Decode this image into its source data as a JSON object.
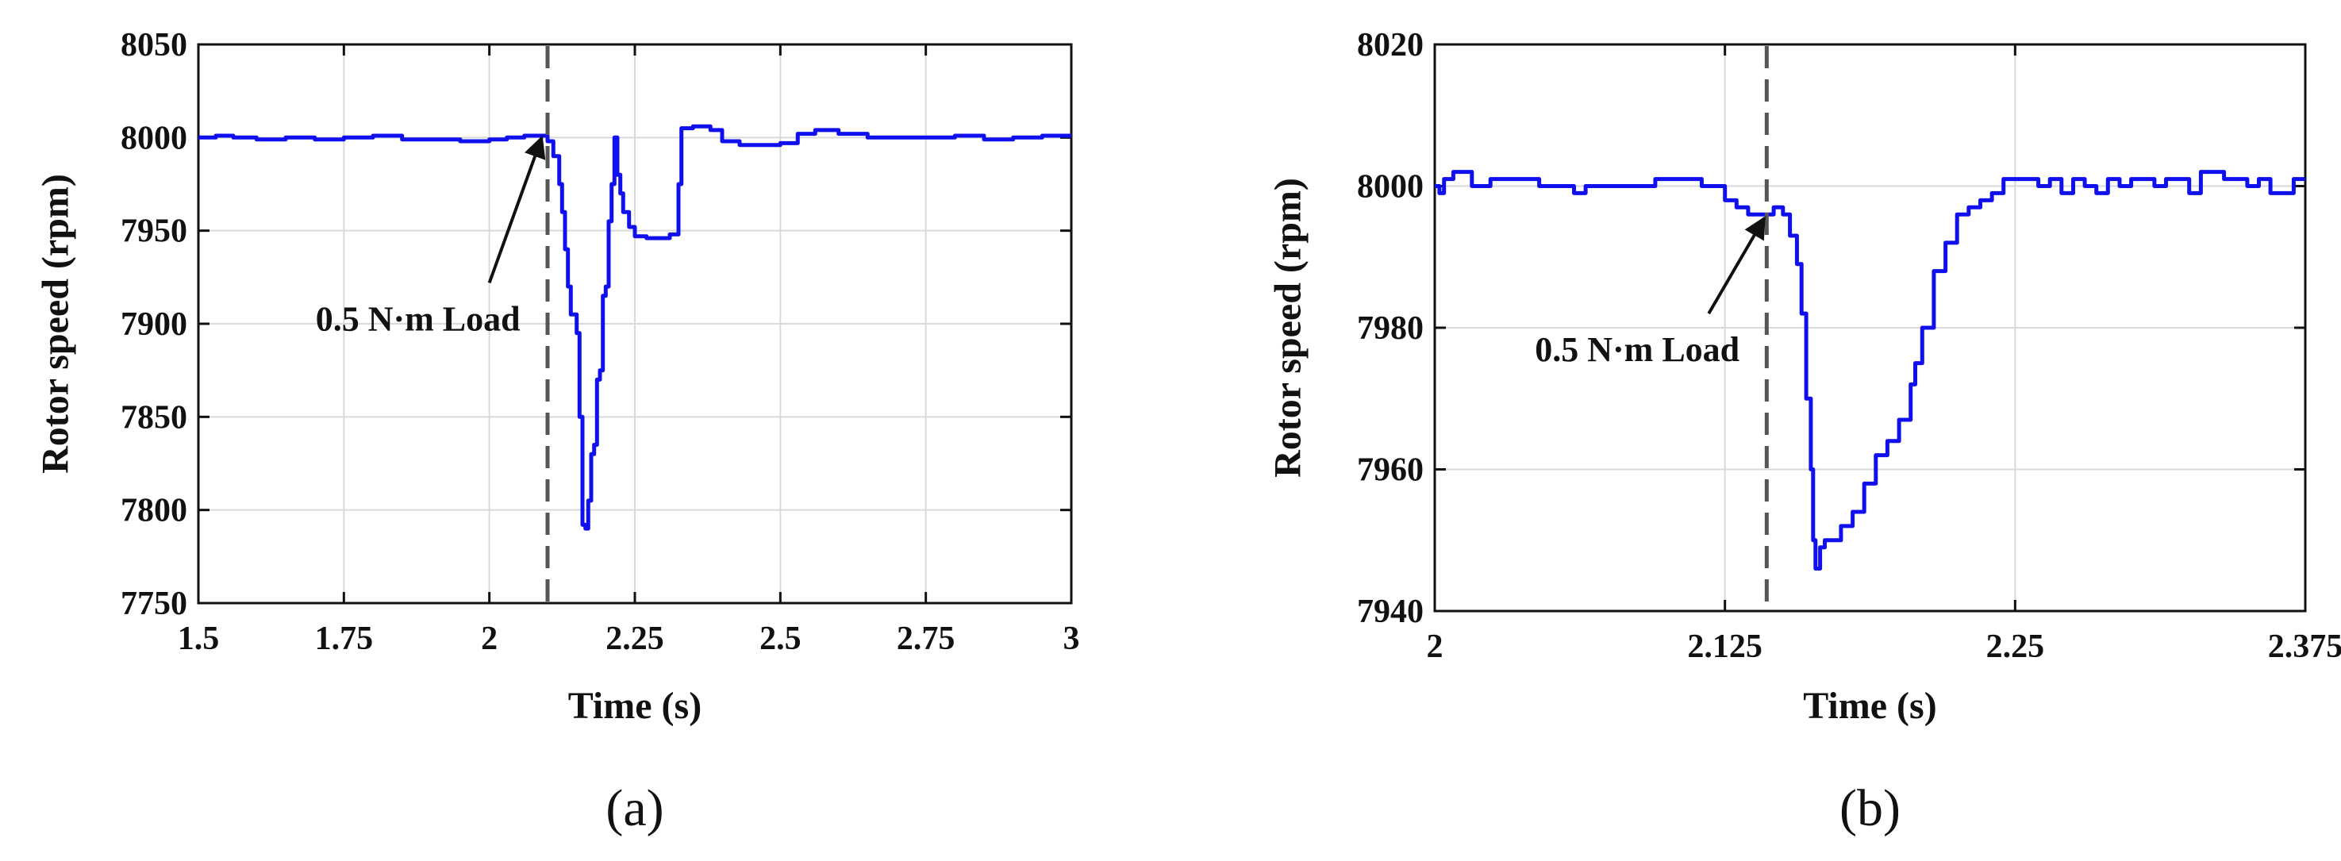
{
  "colors": {
    "series": "#1010ee",
    "grid": "#d9d9d9",
    "dashed_line": "#555555"
  },
  "chart_data": [
    {
      "type": "line",
      "panel_label": "(a)",
      "xlabel": "Time (s)",
      "ylabel": "Rotor speed (rpm)",
      "xlim": [
        1.5,
        3
      ],
      "ylim": [
        7750,
        8050
      ],
      "x_ticks": [
        1.5,
        1.75,
        2,
        2.25,
        2.5,
        2.75,
        3
      ],
      "x_tick_labels": [
        "1.5",
        "1.75",
        "2",
        "2.25",
        "2.5",
        "2.75",
        "3"
      ],
      "y_ticks": [
        7750,
        7800,
        7850,
        7900,
        7950,
        8000,
        8050
      ],
      "y_tick_labels": [
        "7750",
        "7800",
        "7850",
        "7900",
        "7950",
        "8000",
        "8050"
      ],
      "grid": true,
      "annotation": {
        "text": "0.5 N·m Load",
        "arrow_to_x": 2.09,
        "arrow_to_y": 8000,
        "arrow_from_x": 2.0,
        "arrow_from_y": 7922
      },
      "event_line_x": 2.1,
      "series": [
        {
          "x": [
            1.5,
            1.53,
            1.56,
            1.6,
            1.65,
            1.7,
            1.75,
            1.8,
            1.85,
            1.9,
            1.95,
            2.0,
            2.03,
            2.06,
            2.09,
            2.1,
            2.11,
            2.12,
            2.125,
            2.13,
            2.135,
            2.14,
            2.15,
            2.155,
            2.16,
            2.165,
            2.17,
            2.175,
            2.18,
            2.185,
            2.19,
            2.195,
            2.2,
            2.205,
            2.21,
            2.215,
            2.22,
            2.225,
            2.23,
            2.24,
            2.25,
            2.27,
            2.29,
            2.31,
            2.32,
            2.325,
            2.33,
            2.35,
            2.38,
            2.4,
            2.43,
            2.46,
            2.5,
            2.53,
            2.56,
            2.6,
            2.65,
            2.7,
            2.75,
            2.8,
            2.85,
            2.9,
            2.95,
            3.0
          ],
          "y": [
            8000,
            8001,
            8000,
            7999,
            8000,
            7999,
            8000,
            8001,
            7999,
            7999,
            7998,
            7999,
            8000,
            8001,
            8001,
            7998,
            7990,
            7975,
            7960,
            7940,
            7920,
            7905,
            7895,
            7850,
            7792,
            7790,
            7805,
            7830,
            7835,
            7870,
            7875,
            7915,
            7920,
            7955,
            7975,
            8000,
            7980,
            7970,
            7960,
            7952,
            7947,
            7946,
            7946,
            7948,
            7948,
            7975,
            8005,
            8006,
            8004,
            7998,
            7996,
            7996,
            7997,
            8002,
            8004,
            8002,
            8000,
            8000,
            8000,
            8001,
            7999,
            8000,
            8001,
            8001
          ]
        }
      ]
    },
    {
      "type": "line",
      "panel_label": "(b)",
      "xlabel": "Time (s)",
      "ylabel": "Rotor speed (rpm)",
      "xlim": [
        2,
        2.375
      ],
      "ylim": [
        7940,
        8020
      ],
      "x_ticks": [
        2,
        2.125,
        2.25,
        2.375
      ],
      "x_tick_labels": [
        "2",
        "2.125",
        "2.25",
        "2.375"
      ],
      "y_ticks": [
        7940,
        7960,
        7980,
        8000,
        8020
      ],
      "y_tick_labels": [
        "7940",
        "7960",
        "7980",
        "8000",
        "8020"
      ],
      "grid": true,
      "annotation": {
        "text": "0.5 N·m Load",
        "arrow_to_x": 2.142,
        "arrow_to_y": 7995.5,
        "arrow_from_x": 2.118,
        "arrow_from_y": 7982
      },
      "event_line_x": 2.143,
      "series": [
        {
          "x": [
            2.0,
            2.002,
            2.004,
            2.008,
            2.012,
            2.016,
            2.02,
            2.024,
            2.028,
            2.035,
            2.045,
            2.055,
            2.06,
            2.065,
            2.075,
            2.085,
            2.095,
            2.105,
            2.115,
            2.125,
            2.13,
            2.135,
            2.14,
            2.143,
            2.146,
            2.15,
            2.153,
            2.156,
            2.158,
            2.16,
            2.162,
            2.163,
            2.164,
            2.165,
            2.166,
            2.168,
            2.17,
            2.175,
            2.18,
            2.185,
            2.19,
            2.195,
            2.2,
            2.205,
            2.207,
            2.21,
            2.215,
            2.22,
            2.225,
            2.23,
            2.235,
            2.24,
            2.245,
            2.25,
            2.255,
            2.26,
            2.265,
            2.27,
            2.275,
            2.28,
            2.285,
            2.29,
            2.295,
            2.3,
            2.305,
            2.31,
            2.315,
            2.32,
            2.325,
            2.33,
            2.335,
            2.34,
            2.345,
            2.35,
            2.355,
            2.36,
            2.365,
            2.37,
            2.375
          ],
          "y": [
            8000,
            7999,
            8001,
            8002,
            8002,
            8000,
            8000,
            8001,
            8001,
            8001,
            8000,
            8000,
            7999,
            8000,
            8000,
            8000,
            8001,
            8001,
            8000,
            7998,
            7997,
            7996,
            7996,
            7996,
            7997,
            7996,
            7993,
            7989,
            7982,
            7970,
            7960,
            7950,
            7946,
            7946,
            7949,
            7950,
            7950,
            7952,
            7954,
            7958,
            7962,
            7964,
            7967,
            7972,
            7975,
            7980,
            7988,
            7992,
            7996,
            7997,
            7998,
            7999,
            8001,
            8001,
            8001,
            8000,
            8001,
            7999,
            8001,
            8000,
            7999,
            8001,
            8000,
            8001,
            8001,
            8000,
            8001,
            8001,
            7999,
            8002,
            8002,
            8001,
            8001,
            8000,
            8001,
            7999,
            7999,
            8001,
            8001
          ]
        }
      ]
    }
  ]
}
